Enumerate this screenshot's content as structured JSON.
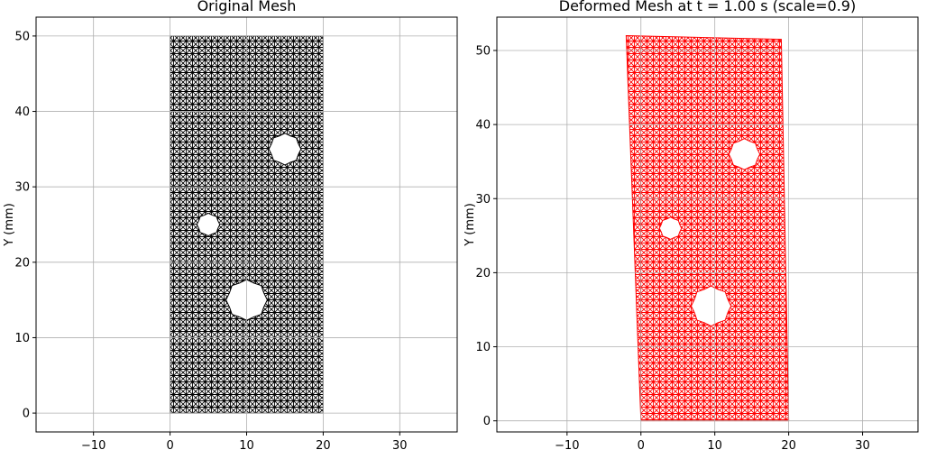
{
  "chart_data": [
    {
      "type": "mesh",
      "title": "Original Mesh",
      "ylabel": "Y (mm)",
      "xlim": [
        -17.5,
        37.5
      ],
      "ylim": [
        -2.5,
        52.5
      ],
      "xticks": [
        -10,
        0,
        10,
        20,
        30
      ],
      "yticks": [
        0,
        10,
        20,
        30,
        40,
        50
      ],
      "grid": true,
      "mesh_color": "#000000",
      "domain": {
        "corners": [
          [
            0,
            0
          ],
          [
            20,
            0
          ],
          [
            20,
            50
          ],
          [
            0,
            50
          ]
        ]
      },
      "holes": [
        {
          "cx": 15,
          "cy": 35,
          "r": 2.1
        },
        {
          "cx": 5,
          "cy": 25,
          "r": 1.5
        },
        {
          "cx": 10,
          "cy": 15,
          "r": 2.7
        }
      ]
    },
    {
      "type": "mesh",
      "title": "Deformed Mesh at t = 1.00 s (scale=0.9)",
      "ylabel": "Y (mm)",
      "xlim": [
        -19.5,
        37.5
      ],
      "ylim": [
        -1.5,
        54.5
      ],
      "xticks": [
        -10,
        0,
        10,
        20,
        30
      ],
      "yticks": [
        0,
        10,
        20,
        30,
        40,
        50
      ],
      "grid": true,
      "mesh_color": "#ff0000",
      "domain": {
        "corners": [
          [
            0,
            0
          ],
          [
            20,
            0
          ],
          [
            19,
            51.5
          ],
          [
            -2,
            52
          ]
        ]
      },
      "holes": [
        {
          "cx": 14,
          "cy": 36,
          "r": 2.1
        },
        {
          "cx": 4,
          "cy": 26,
          "r": 1.5
        },
        {
          "cx": 9.5,
          "cy": 15.5,
          "r": 2.7
        }
      ]
    }
  ]
}
